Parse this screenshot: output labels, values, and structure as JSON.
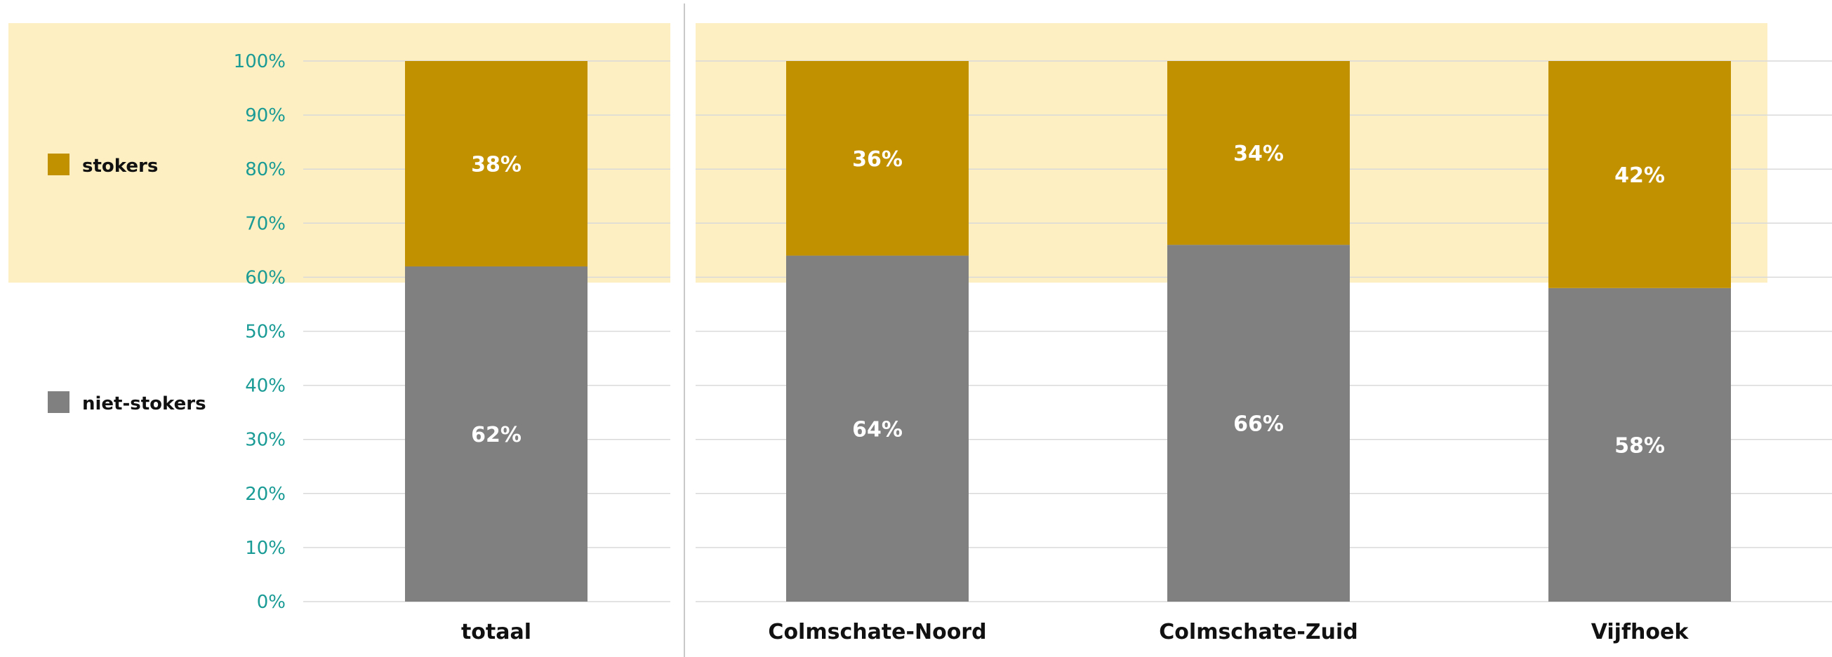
{
  "chart_data": {
    "type": "bar",
    "stacked": true,
    "percent": true,
    "categories": [
      "totaal",
      "Colmschate-Noord",
      "Colmschate-Zuid",
      "Vijfhoek"
    ],
    "series": [
      {
        "name": "niet-stokers",
        "values": [
          62,
          64,
          66,
          58
        ],
        "color": "#808080"
      },
      {
        "name": "stokers",
        "values": [
          38,
          36,
          34,
          42
        ],
        "color": "#c19100"
      }
    ],
    "data_labels": {
      "niet-stokers": [
        "62%",
        "64%",
        "66%",
        "58%"
      ],
      "stokers": [
        "38%",
        "36%",
        "34%",
        "42%"
      ]
    },
    "y_ticks": [
      {
        "value": 0,
        "label": "0%"
      },
      {
        "value": 10,
        "label": "10%"
      },
      {
        "value": 20,
        "label": "20%"
      },
      {
        "value": 30,
        "label": "30%"
      },
      {
        "value": 40,
        "label": "40%"
      },
      {
        "value": 50,
        "label": "50%"
      },
      {
        "value": 60,
        "label": "60%"
      },
      {
        "value": 70,
        "label": "70%"
      },
      {
        "value": 80,
        "label": "80%"
      },
      {
        "value": 90,
        "label": "90%"
      },
      {
        "value": 100,
        "label": "100%"
      }
    ],
    "ylim": [
      0,
      100
    ],
    "highlight_band": [
      59,
      107
    ],
    "grid": true,
    "legend": {
      "placement": "left",
      "order": [
        "stokers",
        "niet-stokers"
      ]
    },
    "colors": {
      "band": "#fdefc1",
      "grid": "#d9d9d9",
      "tick_text": "#1a9b95",
      "divider": "#c8c8c8"
    }
  }
}
